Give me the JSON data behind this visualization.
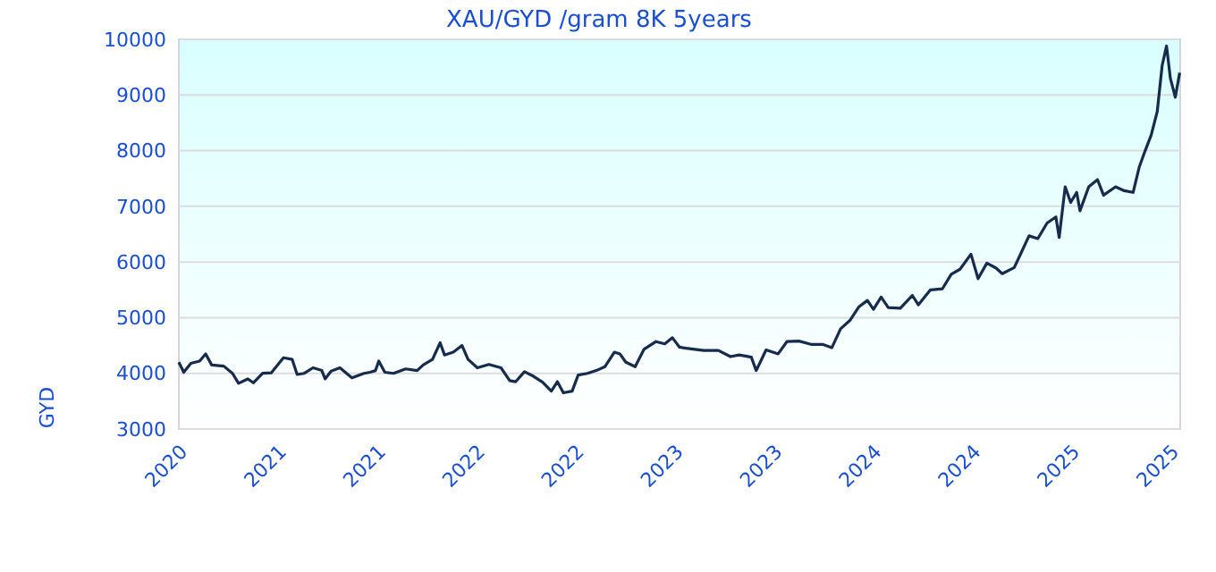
{
  "chart_data": {
    "type": "line",
    "title": "XAU/GYD /gram 8K 5years",
    "ylabel": "GYD",
    "xlim": [
      "2020-07-20",
      "2025-07-22"
    ],
    "xticks": [
      {
        "value": "2020-07-20",
        "label": "2020"
      },
      {
        "value": "2021-01-17",
        "label": "2021"
      },
      {
        "value": "2021-07-17",
        "label": "2021"
      },
      {
        "value": "2022-01-14",
        "label": "2022"
      },
      {
        "value": "2022-07-14",
        "label": "2022"
      },
      {
        "value": "2023-01-11",
        "label": "2023"
      },
      {
        "value": "2023-07-11",
        "label": "2023"
      },
      {
        "value": "2024-01-08",
        "label": "2024"
      },
      {
        "value": "2024-07-07",
        "label": "2024"
      },
      {
        "value": "2025-01-04",
        "label": "2025"
      },
      {
        "value": "2025-07-04",
        "label": "2025"
      }
    ],
    "ylim": [
      3000,
      10000
    ],
    "yticks": [
      3000,
      4000,
      5000,
      6000,
      7000,
      8000,
      9000,
      10000
    ],
    "grid": "y",
    "marker": "none",
    "line_style": "solid",
    "x": [
      "2020-07-20",
      "2020-07-29",
      "2020-08-11",
      "2020-08-27",
      "2020-09-07",
      "2020-09-18",
      "2020-10-10",
      "2020-10-26",
      "2020-11-06",
      "2020-11-23",
      "2020-12-03",
      "2020-12-20",
      "2021-01-05",
      "2021-01-27",
      "2021-02-12",
      "2021-02-21",
      "2021-03-06",
      "2021-03-22",
      "2021-04-07",
      "2021-04-13",
      "2021-04-24",
      "2021-05-10",
      "2021-06-01",
      "2021-06-23",
      "2021-07-04",
      "2021-07-14",
      "2021-07-20",
      "2021-07-31",
      "2021-08-16",
      "2021-09-07",
      "2021-09-28",
      "2021-10-09",
      "2021-10-26",
      "2021-11-09",
      "2021-11-17",
      "2021-12-03",
      "2021-12-19",
      "2021-12-30",
      "2022-01-16",
      "2022-02-06",
      "2022-02-28",
      "2022-03-16",
      "2022-03-27",
      "2022-04-12",
      "2022-04-26",
      "2022-05-15",
      "2022-05-31",
      "2022-06-11",
      "2022-06-22",
      "2022-07-08",
      "2022-07-19",
      "2022-08-05",
      "2022-08-21",
      "2022-09-06",
      "2022-09-23",
      "2022-10-03",
      "2022-10-14",
      "2022-10-31",
      "2022-11-16",
      "2022-12-08",
      "2022-12-24",
      "2023-01-07",
      "2023-01-20",
      "2023-02-01",
      "2023-03-05",
      "2023-04-01",
      "2023-04-23",
      "2023-05-09",
      "2023-05-31",
      "2023-06-09",
      "2023-06-27",
      "2023-07-19",
      "2023-08-04",
      "2023-08-26",
      "2023-09-17",
      "2023-10-08",
      "2023-10-25",
      "2023-11-10",
      "2023-11-27",
      "2023-12-13",
      "2023-12-29",
      "2024-01-09",
      "2024-01-23",
      "2024-02-05",
      "2024-02-27",
      "2024-03-20",
      "2024-03-31",
      "2024-04-22",
      "2024-05-14",
      "2024-05-30",
      "2024-06-15",
      "2024-07-05",
      "2024-07-18",
      "2024-08-03",
      "2024-08-20",
      "2024-08-31",
      "2024-09-22",
      "2024-10-03",
      "2024-10-19",
      "2024-11-04",
      "2024-11-21",
      "2024-12-07",
      "2024-12-13",
      "2024-12-24",
      "2025-01-03",
      "2025-01-14",
      "2025-01-20",
      "2025-02-05",
      "2025-02-21",
      "2025-03-04",
      "2025-03-26",
      "2025-04-11",
      "2025-04-27",
      "2025-05-08",
      "2025-05-19",
      "2025-05-30",
      "2025-06-10",
      "2025-06-19",
      "2025-06-27",
      "2025-07-04",
      "2025-07-13",
      "2025-07-21"
    ],
    "series": [
      {
        "color": "#172b4d",
        "values": [
          4200,
          4020,
          4180,
          4220,
          4350,
          4150,
          4130,
          4000,
          3820,
          3900,
          3830,
          4000,
          4010,
          4280,
          4250,
          3980,
          4000,
          4100,
          4050,
          3900,
          4040,
          4100,
          3920,
          4000,
          4020,
          4050,
          4220,
          4020,
          4000,
          4080,
          4050,
          4150,
          4250,
          4550,
          4330,
          4380,
          4500,
          4250,
          4100,
          4160,
          4100,
          3870,
          3850,
          4030,
          3960,
          3840,
          3680,
          3850,
          3650,
          3680,
          3970,
          4000,
          4050,
          4120,
          4380,
          4350,
          4200,
          4120,
          4430,
          4570,
          4530,
          4640,
          4470,
          4450,
          4410,
          4410,
          4300,
          4330,
          4290,
          4050,
          4420,
          4350,
          4570,
          4580,
          4520,
          4520,
          4460,
          4800,
          4950,
          5190,
          5310,
          5150,
          5370,
          5180,
          5170,
          5400,
          5230,
          5500,
          5520,
          5780,
          5870,
          6140,
          5700,
          5980,
          5890,
          5790,
          5900,
          6130,
          6470,
          6420,
          6700,
          6810,
          6440,
          7350,
          7070,
          7250,
          6920,
          7350,
          7480,
          7200,
          7350,
          7280,
          7250,
          7700,
          8000,
          8280,
          8700,
          9530,
          9880,
          9300,
          8960,
          9400
        ]
      }
    ]
  }
}
